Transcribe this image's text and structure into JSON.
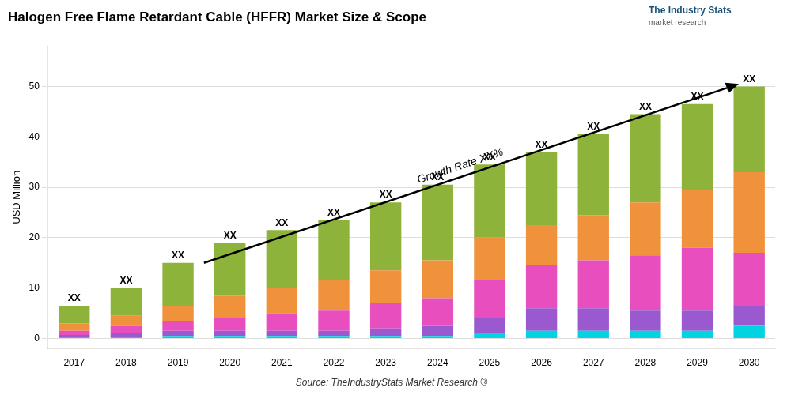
{
  "chart_data": {
    "type": "bar",
    "stacked": true,
    "title": "Halogen Free Flame Retardant Cable (HFFR) Market Size & Scope",
    "ylabel": "USD Million",
    "source": "Source: TheIndustryStats Market Research ®",
    "logo": [
      "The Industry Stats",
      "market research"
    ],
    "bar_label": "XX",
    "annotations": [
      "Growth Rate XX%"
    ],
    "categories": [
      "2017",
      "2018",
      "2019",
      "2020",
      "2021",
      "2022",
      "2023",
      "2024",
      "2025",
      "2026",
      "2027",
      "2028",
      "2029",
      "2030"
    ],
    "series": [
      {
        "color": "#00d4e0",
        "values": [
          0.3,
          0.3,
          0.5,
          0.5,
          0.5,
          0.5,
          0.5,
          0.5,
          1.0,
          1.5,
          1.5,
          1.5,
          1.5,
          2.5
        ]
      },
      {
        "color": "#9b59d0",
        "values": [
          0.4,
          0.7,
          1.0,
          1.0,
          1.0,
          1.0,
          1.5,
          2.0,
          3.0,
          4.5,
          4.5,
          4.0,
          4.0,
          4.0
        ]
      },
      {
        "color": "#e84ebe",
        "values": [
          0.8,
          1.5,
          2.0,
          2.5,
          3.5,
          4.0,
          5.0,
          5.5,
          7.5,
          8.5,
          9.5,
          11.0,
          12.5,
          10.5
        ]
      },
      {
        "color": "#f0923b",
        "values": [
          1.5,
          2.0,
          3.0,
          4.5,
          5.0,
          6.0,
          6.5,
          7.5,
          8.5,
          8.0,
          9.0,
          10.5,
          11.5,
          16.0
        ]
      },
      {
        "color": "#8db33a",
        "values": [
          3.5,
          5.5,
          8.5,
          10.5,
          11.5,
          12.0,
          13.5,
          15.0,
          14.5,
          14.5,
          16.0,
          17.5,
          17.0,
          17.0
        ]
      }
    ],
    "ylim": [
      -2,
      58
    ],
    "yticks": [
      0,
      10,
      20,
      30,
      40,
      50
    ],
    "grid": true
  }
}
